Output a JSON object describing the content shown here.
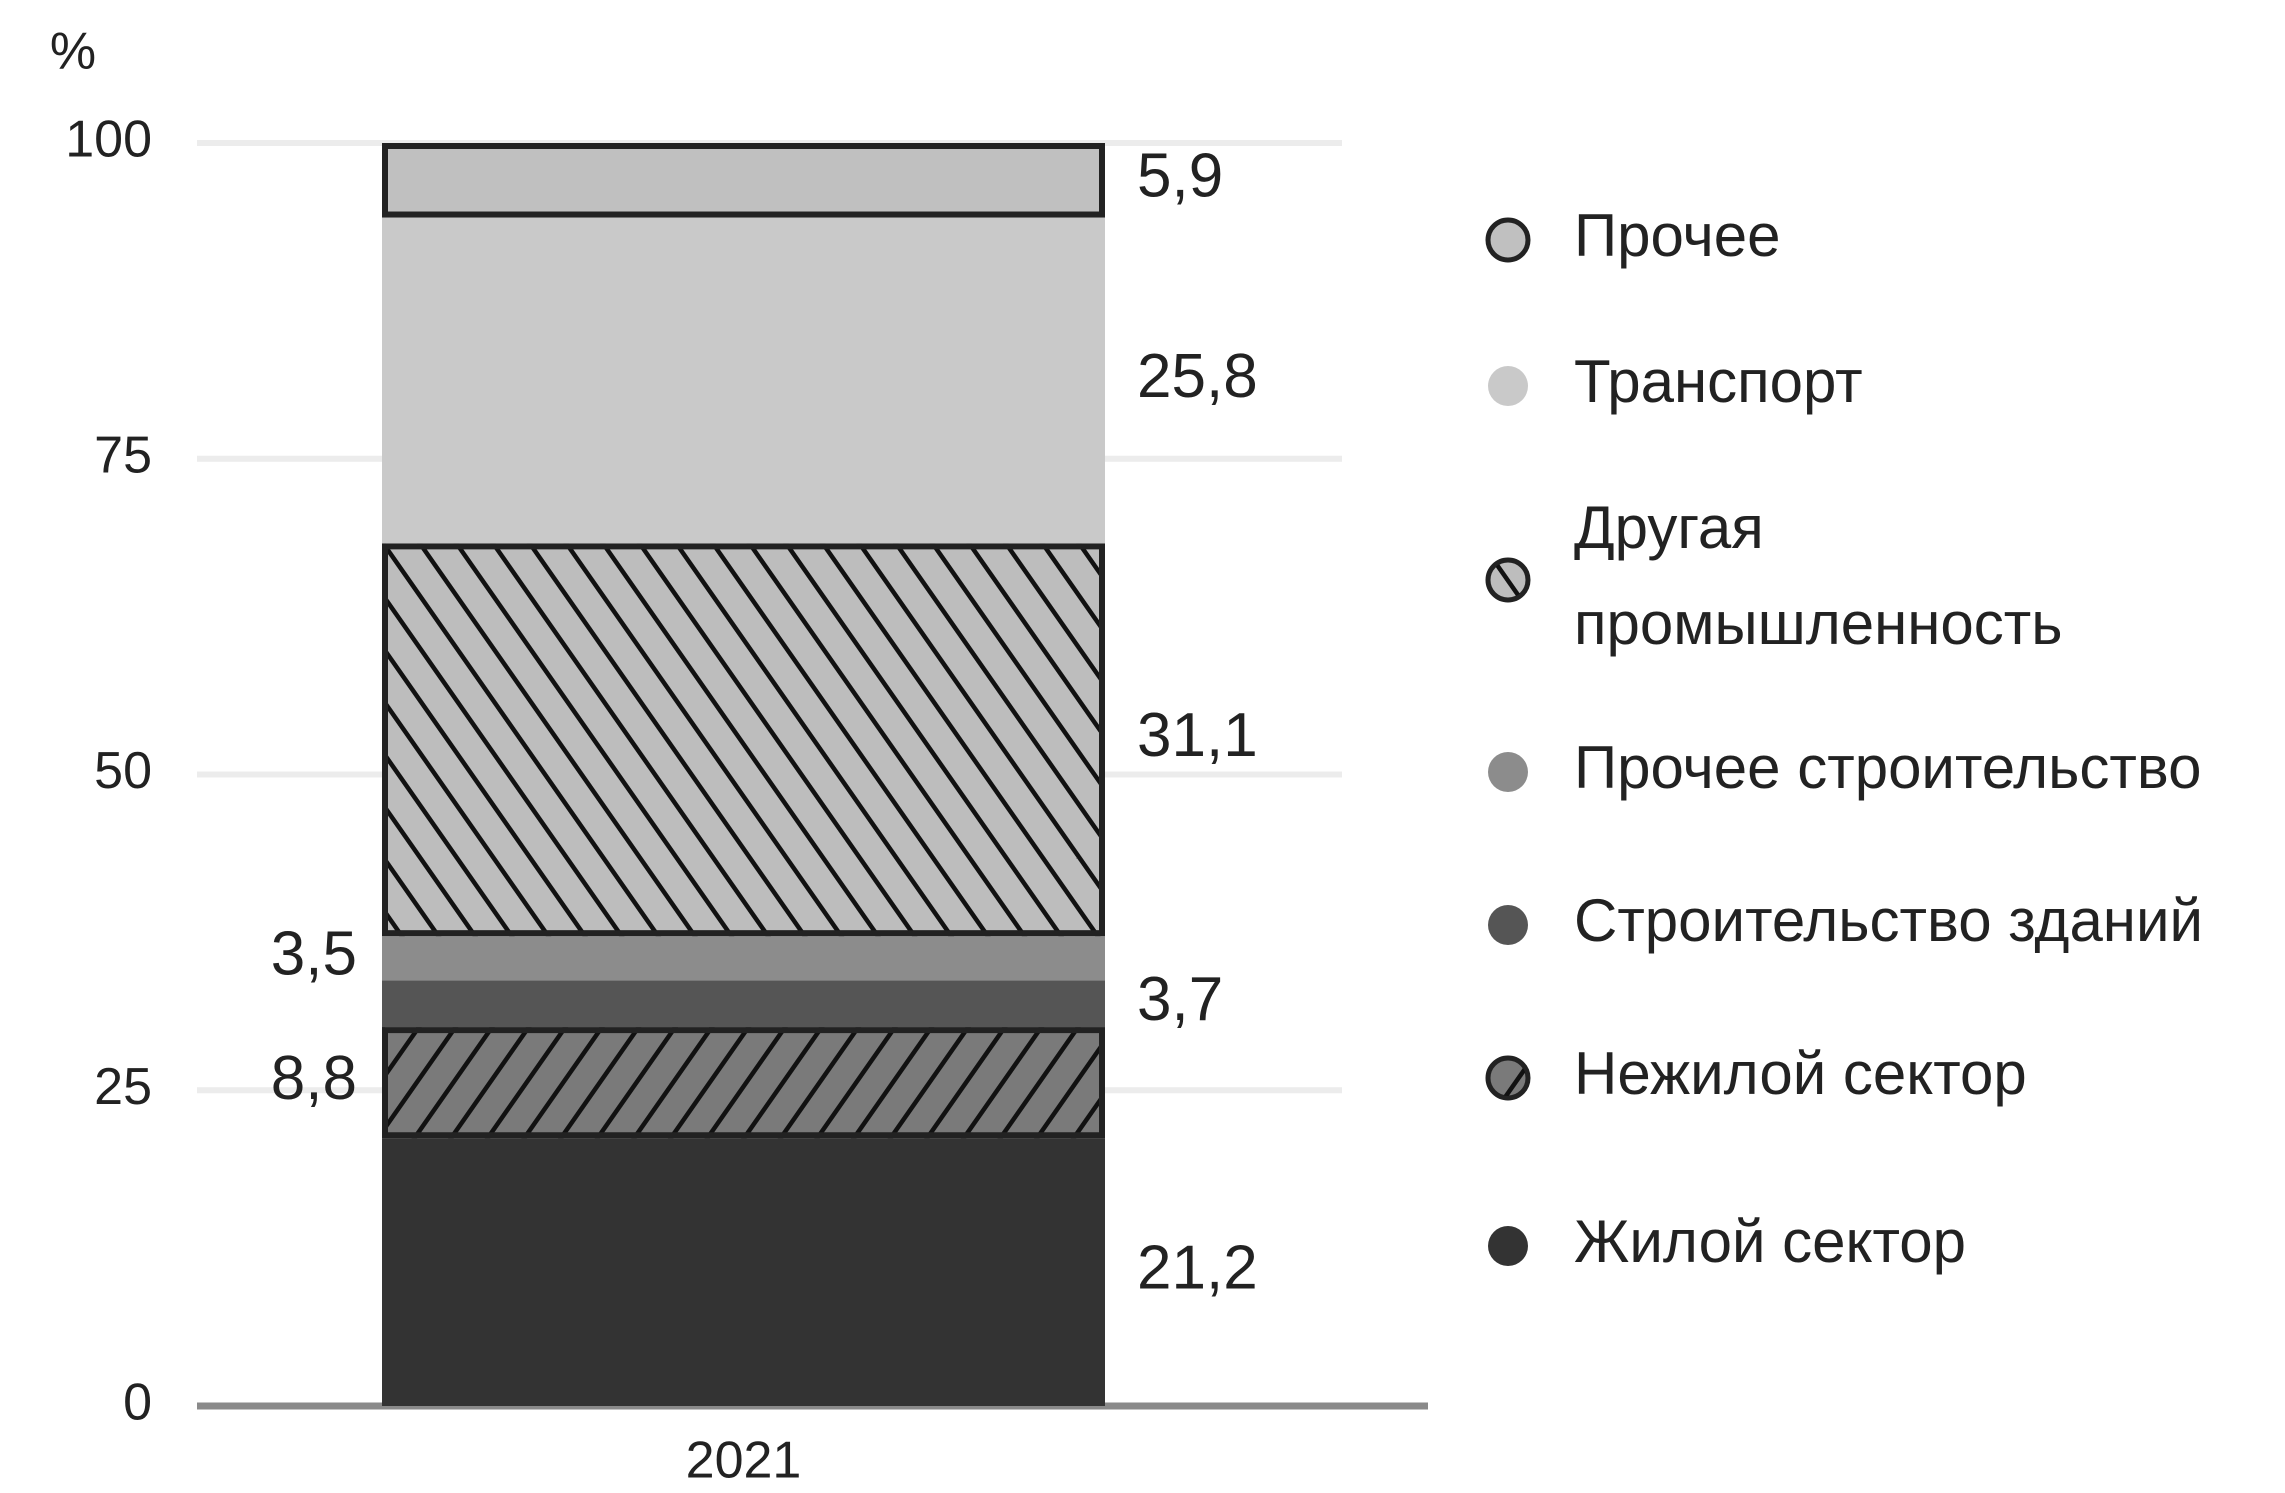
{
  "chart_data": {
    "type": "stacked_bar",
    "y_label": "%",
    "categories": [
      "2021"
    ],
    "ylim": [
      0,
      100
    ],
    "yticks": [
      0,
      25,
      50,
      75,
      100
    ],
    "grid": true,
    "legend_position": "right",
    "series": [
      {
        "name": "Жилой сектор",
        "color": "#333333",
        "values": [
          21.2
        ],
        "value_labels": [
          "21,2"
        ]
      },
      {
        "name": "Нежилой сектор",
        "color": "#7a7a7a",
        "pattern": "slash",
        "values": [
          8.8
        ],
        "value_labels": [
          "8,8"
        ]
      },
      {
        "name": "Строительство зданий",
        "color": "#555555",
        "values": [
          3.7
        ],
        "value_labels": [
          "3,7"
        ]
      },
      {
        "name": "Прочее строительство",
        "color": "#8c8c8c",
        "values": [
          3.5
        ],
        "value_labels": [
          "3,5"
        ]
      },
      {
        "name": "Другая промышленность",
        "color": "#bdbdbd",
        "pattern": "backslash",
        "values": [
          31.1
        ],
        "value_labels": [
          "31,1"
        ]
      },
      {
        "name": "Транспорт",
        "color": "#c9c9c9",
        "values": [
          25.8
        ],
        "value_labels": [
          "25,8"
        ]
      },
      {
        "name": "Прочее",
        "color": "#c0c0c0",
        "outline": true,
        "values": [
          5.9
        ],
        "value_labels": [
          "5,9"
        ]
      }
    ]
  }
}
